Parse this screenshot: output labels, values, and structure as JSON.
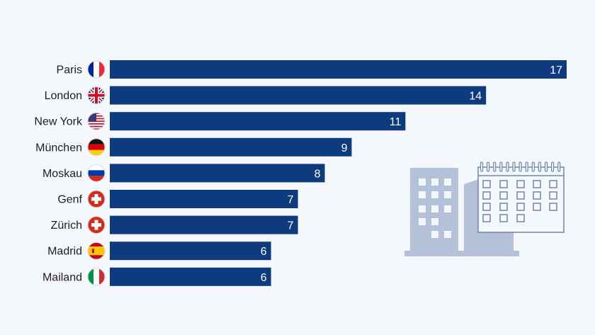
{
  "chart_data": {
    "type": "bar",
    "orientation": "horizontal",
    "categories": [
      "Paris",
      "London",
      "New York",
      "München",
      "Moskau",
      "Genf",
      "Zürich",
      "Madrid",
      "Mailand"
    ],
    "values": [
      17,
      14,
      11,
      9,
      8,
      7,
      7,
      6,
      6
    ],
    "flags": [
      "fr",
      "gb",
      "us",
      "de",
      "ru",
      "ch",
      "ch",
      "es",
      "it"
    ],
    "xlim": [
      0,
      17
    ],
    "grid": false,
    "legend": "none",
    "title": "",
    "xlabel": "",
    "ylabel": "",
    "colors": {
      "bar": "#0d3b7e",
      "background": "#f4f7fb",
      "illustration": "#b3c2d8"
    },
    "decoration": "building-and-calendar-illustration"
  }
}
